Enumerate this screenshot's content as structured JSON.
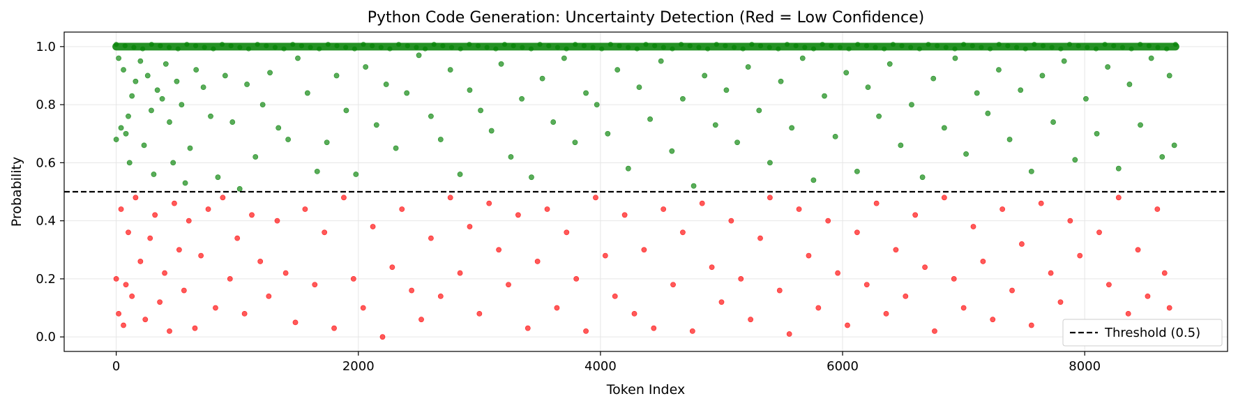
{
  "chart_data": {
    "type": "scatter",
    "title": "Python Code Generation: Uncertainty Detection (Red = Low Confidence)",
    "xlabel": "Token Index",
    "ylabel": "Probability",
    "xlim": [
      -430,
      9180
    ],
    "ylim": [
      -0.05,
      1.05
    ],
    "xticks": [
      0,
      2000,
      4000,
      6000,
      8000
    ],
    "yticks": [
      0.0,
      0.2,
      0.4,
      0.6,
      0.8,
      1.0
    ],
    "xtick_labels": [
      "0",
      "2000",
      "4000",
      "6000",
      "8000"
    ],
    "ytick_labels": [
      "0.0",
      "0.2",
      "0.4",
      "0.6",
      "0.8",
      "1.0"
    ],
    "grid": true,
    "threshold": 0.5,
    "legend": {
      "position": "bottom-right",
      "entries": [
        "Threshold (0.5)"
      ]
    },
    "colors": {
      "high_confidence": "#008000",
      "low_confidence": "#ff0000",
      "threshold_line": "#000000"
    },
    "series": [
      {
        "color": "#008000",
        "points": [
          [
            0,
            0.68
          ],
          [
            20,
            0.96
          ],
          [
            40,
            0.72
          ],
          [
            60,
            0.92
          ],
          [
            80,
            0.7
          ],
          [
            100,
            0.76
          ],
          [
            110,
            0.6
          ],
          [
            130,
            0.83
          ],
          [
            160,
            0.88
          ],
          [
            200,
            0.95
          ],
          [
            230,
            0.66
          ],
          [
            260,
            0.9
          ],
          [
            290,
            0.78
          ],
          [
            310,
            0.56
          ],
          [
            340,
            0.85
          ],
          [
            380,
            0.82
          ],
          [
            410,
            0.94
          ],
          [
            440,
            0.74
          ],
          [
            470,
            0.6
          ],
          [
            500,
            0.88
          ],
          [
            540,
            0.8
          ],
          [
            570,
            0.53
          ],
          [
            610,
            0.65
          ],
          [
            660,
            0.92
          ],
          [
            720,
            0.86
          ],
          [
            780,
            0.76
          ],
          [
            840,
            0.55
          ],
          [
            900,
            0.9
          ],
          [
            960,
            0.74
          ],
          [
            1020,
            0.51
          ],
          [
            1080,
            0.87
          ],
          [
            1150,
            0.62
          ],
          [
            1210,
            0.8
          ],
          [
            1270,
            0.91
          ],
          [
            1340,
            0.72
          ],
          [
            1420,
            0.68
          ],
          [
            1500,
            0.96
          ],
          [
            1580,
            0.84
          ],
          [
            1660,
            0.57
          ],
          [
            1740,
            0.67
          ],
          [
            1820,
            0.9
          ],
          [
            1900,
            0.78
          ],
          [
            1980,
            0.56
          ],
          [
            2060,
            0.93
          ],
          [
            2150,
            0.73
          ],
          [
            2230,
            0.87
          ],
          [
            2310,
            0.65
          ],
          [
            2400,
            0.84
          ],
          [
            2500,
            0.97
          ],
          [
            2600,
            0.76
          ],
          [
            2680,
            0.68
          ],
          [
            2760,
            0.92
          ],
          [
            2840,
            0.56
          ],
          [
            2920,
            0.85
          ],
          [
            3010,
            0.78
          ],
          [
            3100,
            0.71
          ],
          [
            3180,
            0.94
          ],
          [
            3260,
            0.62
          ],
          [
            3350,
            0.82
          ],
          [
            3430,
            0.55
          ],
          [
            3520,
            0.89
          ],
          [
            3610,
            0.74
          ],
          [
            3700,
            0.96
          ],
          [
            3790,
            0.67
          ],
          [
            3880,
            0.84
          ],
          [
            3970,
            0.8
          ],
          [
            4060,
            0.7
          ],
          [
            4140,
            0.92
          ],
          [
            4230,
            0.58
          ],
          [
            4320,
            0.86
          ],
          [
            4410,
            0.75
          ],
          [
            4500,
            0.95
          ],
          [
            4590,
            0.64
          ],
          [
            4680,
            0.82
          ],
          [
            4770,
            0.52
          ],
          [
            4860,
            0.9
          ],
          [
            4950,
            0.73
          ],
          [
            5040,
            0.85
          ],
          [
            5130,
            0.67
          ],
          [
            5220,
            0.93
          ],
          [
            5310,
            0.78
          ],
          [
            5400,
            0.6
          ],
          [
            5490,
            0.88
          ],
          [
            5580,
            0.72
          ],
          [
            5670,
            0.96
          ],
          [
            5760,
            0.54
          ],
          [
            5850,
            0.83
          ],
          [
            5940,
            0.69
          ],
          [
            6030,
            0.91
          ],
          [
            6120,
            0.57
          ],
          [
            6210,
            0.86
          ],
          [
            6300,
            0.76
          ],
          [
            6390,
            0.94
          ],
          [
            6480,
            0.66
          ],
          [
            6570,
            0.8
          ],
          [
            6660,
            0.55
          ],
          [
            6750,
            0.89
          ],
          [
            6840,
            0.72
          ],
          [
            6930,
            0.96
          ],
          [
            7020,
            0.63
          ],
          [
            7110,
            0.84
          ],
          [
            7200,
            0.77
          ],
          [
            7290,
            0.92
          ],
          [
            7380,
            0.68
          ],
          [
            7470,
            0.85
          ],
          [
            7560,
            0.57
          ],
          [
            7650,
            0.9
          ],
          [
            7740,
            0.74
          ],
          [
            7830,
            0.95
          ],
          [
            7920,
            0.61
          ],
          [
            8010,
            0.82
          ],
          [
            8100,
            0.7
          ],
          [
            8190,
            0.93
          ],
          [
            8280,
            0.58
          ],
          [
            8370,
            0.87
          ],
          [
            8460,
            0.73
          ],
          [
            8550,
            0.96
          ],
          [
            8640,
            0.62
          ],
          [
            8700,
            0.9
          ],
          [
            8740,
            0.66
          ]
        ]
      },
      {
        "color": "#ff0000",
        "points": [
          [
            0,
            0.2
          ],
          [
            20,
            0.08
          ],
          [
            40,
            0.44
          ],
          [
            60,
            0.04
          ],
          [
            80,
            0.18
          ],
          [
            100,
            0.36
          ],
          [
            130,
            0.14
          ],
          [
            160,
            0.48
          ],
          [
            200,
            0.26
          ],
          [
            240,
            0.06
          ],
          [
            280,
            0.34
          ],
          [
            320,
            0.42
          ],
          [
            360,
            0.12
          ],
          [
            400,
            0.22
          ],
          [
            440,
            0.02
          ],
          [
            480,
            0.46
          ],
          [
            520,
            0.3
          ],
          [
            560,
            0.16
          ],
          [
            600,
            0.4
          ],
          [
            650,
            0.03
          ],
          [
            700,
            0.28
          ],
          [
            760,
            0.44
          ],
          [
            820,
            0.1
          ],
          [
            880,
            0.48
          ],
          [
            940,
            0.2
          ],
          [
            1000,
            0.34
          ],
          [
            1060,
            0.08
          ],
          [
            1120,
            0.42
          ],
          [
            1190,
            0.26
          ],
          [
            1260,
            0.14
          ],
          [
            1330,
            0.4
          ],
          [
            1400,
            0.22
          ],
          [
            1480,
            0.05
          ],
          [
            1560,
            0.44
          ],
          [
            1640,
            0.18
          ],
          [
            1720,
            0.36
          ],
          [
            1800,
            0.03
          ],
          [
            1880,
            0.48
          ],
          [
            1960,
            0.2
          ],
          [
            2040,
            0.1
          ],
          [
            2120,
            0.38
          ],
          [
            2200,
            0.0
          ],
          [
            2280,
            0.24
          ],
          [
            2360,
            0.44
          ],
          [
            2440,
            0.16
          ],
          [
            2520,
            0.06
          ],
          [
            2600,
            0.34
          ],
          [
            2680,
            0.14
          ],
          [
            2760,
            0.48
          ],
          [
            2840,
            0.22
          ],
          [
            2920,
            0.38
          ],
          [
            3000,
            0.08
          ],
          [
            3080,
            0.46
          ],
          [
            3160,
            0.3
          ],
          [
            3240,
            0.18
          ],
          [
            3320,
            0.42
          ],
          [
            3400,
            0.03
          ],
          [
            3480,
            0.26
          ],
          [
            3560,
            0.44
          ],
          [
            3640,
            0.1
          ],
          [
            3720,
            0.36
          ],
          [
            3800,
            0.2
          ],
          [
            3880,
            0.02
          ],
          [
            3960,
            0.48
          ],
          [
            4040,
            0.28
          ],
          [
            4120,
            0.14
          ],
          [
            4200,
            0.42
          ],
          [
            4280,
            0.08
          ],
          [
            4360,
            0.3
          ],
          [
            4440,
            0.03
          ],
          [
            4520,
            0.44
          ],
          [
            4600,
            0.18
          ],
          [
            4680,
            0.36
          ],
          [
            4760,
            0.02
          ],
          [
            4840,
            0.46
          ],
          [
            4920,
            0.24
          ],
          [
            5000,
            0.12
          ],
          [
            5080,
            0.4
          ],
          [
            5160,
            0.2
          ],
          [
            5240,
            0.06
          ],
          [
            5320,
            0.34
          ],
          [
            5400,
            0.48
          ],
          [
            5480,
            0.16
          ],
          [
            5560,
            0.01
          ],
          [
            5640,
            0.44
          ],
          [
            5720,
            0.28
          ],
          [
            5800,
            0.1
          ],
          [
            5880,
            0.4
          ],
          [
            5960,
            0.22
          ],
          [
            6040,
            0.04
          ],
          [
            6120,
            0.36
          ],
          [
            6200,
            0.18
          ],
          [
            6280,
            0.46
          ],
          [
            6360,
            0.08
          ],
          [
            6440,
            0.3
          ],
          [
            6520,
            0.14
          ],
          [
            6600,
            0.42
          ],
          [
            6680,
            0.24
          ],
          [
            6760,
            0.02
          ],
          [
            6840,
            0.48
          ],
          [
            6920,
            0.2
          ],
          [
            7000,
            0.1
          ],
          [
            7080,
            0.38
          ],
          [
            7160,
            0.26
          ],
          [
            7240,
            0.06
          ],
          [
            7320,
            0.44
          ],
          [
            7400,
            0.16
          ],
          [
            7480,
            0.32
          ],
          [
            7560,
            0.04
          ],
          [
            7640,
            0.46
          ],
          [
            7720,
            0.22
          ],
          [
            7800,
            0.12
          ],
          [
            7880,
            0.4
          ],
          [
            7960,
            0.28
          ],
          [
            8040,
            0.02
          ],
          [
            8120,
            0.36
          ],
          [
            8200,
            0.18
          ],
          [
            8280,
            0.48
          ],
          [
            8360,
            0.08
          ],
          [
            8440,
            0.3
          ],
          [
            8520,
            0.14
          ],
          [
            8600,
            0.44
          ],
          [
            8660,
            0.22
          ],
          [
            8700,
            0.1
          ],
          [
            8740,
            0.04
          ]
        ]
      }
    ],
    "dense_band": {
      "y": 1.0,
      "x_from": 0,
      "x_to": 8750,
      "color": "#008000"
    }
  }
}
